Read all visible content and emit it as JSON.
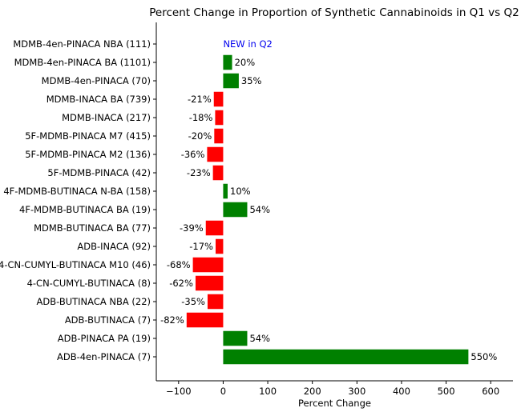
{
  "chart_data": {
    "type": "bar",
    "orientation": "horizontal",
    "title": "Percent Change in Proportion of Synthetic Cannabinoids in Q1 vs Q2",
    "xlabel": "Percent Change",
    "ylabel": "",
    "xlim": [
      -150,
      650
    ],
    "xticks": [
      -100,
      0,
      100,
      200,
      300,
      400,
      500,
      600
    ],
    "xtick_labels": [
      "−100",
      "0",
      "100",
      "200",
      "300",
      "400",
      "500",
      "600"
    ],
    "grid": false,
    "colors": {
      "positive": "#008000",
      "negative": "#ff0000",
      "note": "#0000ee"
    },
    "categories": [
      "MDMB-4en-PINACA NBA (111)",
      "MDMB-4en-PINACA BA (1101)",
      "MDMB-4en-PINACA (70)",
      "MDMB-INACA BA (739)",
      "MDMB-INACA (217)",
      "5F-MDMB-PINACA M7 (415)",
      "5F-MDMB-PINACA M2 (136)",
      "5F-MDMB-PINACA (42)",
      "4F-MDMB-BUTINACA N-BA (158)",
      "4F-MDMB-BUTINACA BA (19)",
      "MDMB-BUTINACA BA (77)",
      "ADB-INACA (92)",
      "4-CN-CUMYL-BUTINACA M10 (46)",
      "4-CN-CUMYL-BUTINACA (8)",
      "ADB-BUTINACA NBA (22)",
      "ADB-BUTINACA (7)",
      "ADB-PINACA PA (19)",
      "ADB-4en-PINACA (7)"
    ],
    "values": [
      null,
      20,
      35,
      -21,
      -18,
      -20,
      -36,
      -23,
      10,
      54,
      -39,
      -17,
      -68,
      -62,
      -35,
      -82,
      54,
      550
    ],
    "labels": [
      "NEW in Q2",
      "20%",
      "35%",
      "-21%",
      "-18%",
      "-20%",
      "-36%",
      "-23%",
      "10%",
      "54%",
      "-39%",
      "-17%",
      "-68%",
      "-62%",
      "-35%",
      "-82%",
      "54%",
      "550%"
    ]
  }
}
